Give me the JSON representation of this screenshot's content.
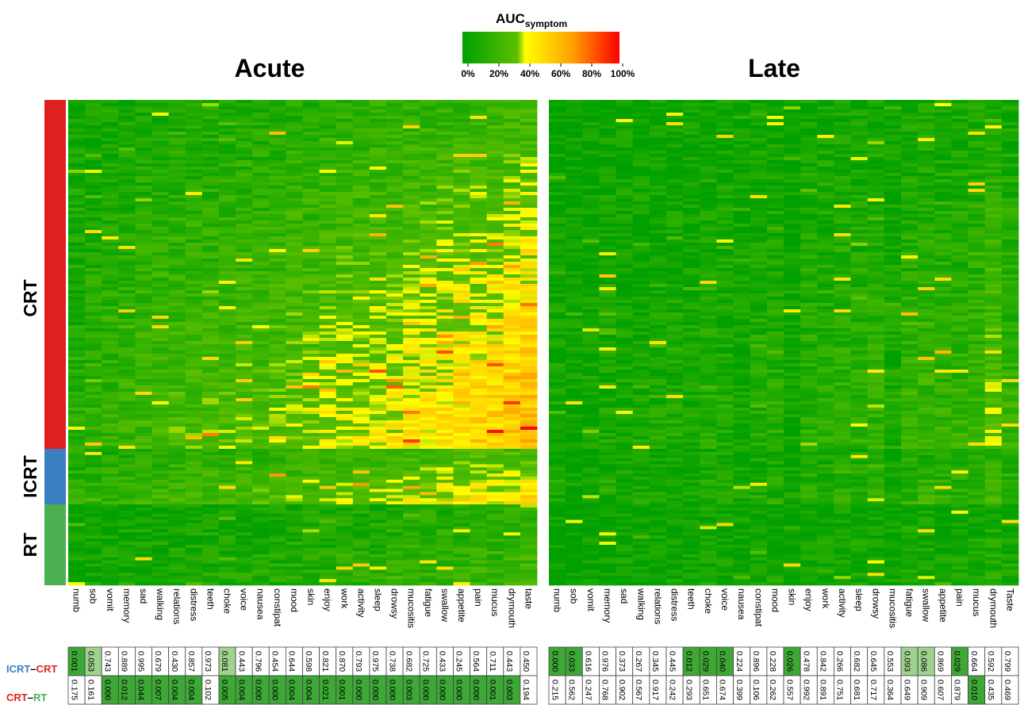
{
  "chart_data": {
    "type": "heatmap",
    "colorbar": {
      "title_main": "AUC",
      "title_sub": "symptom",
      "ticks": [
        "0%",
        "20%",
        "40%",
        "60%",
        "80%",
        "100%"
      ],
      "colors": [
        "#00a000",
        "#5cbf00",
        "#ffff00",
        "#ffa000",
        "#ff0000"
      ]
    },
    "panels": [
      {
        "title": "Acute",
        "symptoms": [
          "numb",
          "sob",
          "vomit",
          "memory",
          "sad",
          "walking",
          "relations",
          "distress",
          "teeth",
          "choke",
          "voice",
          "nausea",
          "constipat",
          "mood",
          "skin",
          "enjoy",
          "work",
          "activity",
          "sleep",
          "drowsy",
          "mucositis",
          "fatigue",
          "swallow",
          "appetite",
          "pain",
          "mucus",
          "drymouth",
          "taste"
        ],
        "mean_auc_by_group": {
          "CRT": [
            0.1,
            0.12,
            0.13,
            0.14,
            0.16,
            0.17,
            0.18,
            0.18,
            0.19,
            0.19,
            0.2,
            0.2,
            0.21,
            0.23,
            0.23,
            0.25,
            0.26,
            0.27,
            0.28,
            0.29,
            0.31,
            0.32,
            0.33,
            0.34,
            0.36,
            0.37,
            0.39,
            0.42
          ],
          "ICRT": [
            0.13,
            0.14,
            0.15,
            0.16,
            0.18,
            0.18,
            0.19,
            0.19,
            0.2,
            0.2,
            0.21,
            0.21,
            0.22,
            0.23,
            0.23,
            0.25,
            0.26,
            0.27,
            0.28,
            0.29,
            0.31,
            0.31,
            0.33,
            0.33,
            0.35,
            0.35,
            0.37,
            0.39
          ],
          "RT": [
            0.05,
            0.06,
            0.06,
            0.07,
            0.07,
            0.08,
            0.08,
            0.08,
            0.09,
            0.09,
            0.09,
            0.1,
            0.1,
            0.11,
            0.11,
            0.12,
            0.12,
            0.13,
            0.13,
            0.14,
            0.15,
            0.15,
            0.16,
            0.16,
            0.17,
            0.18,
            0.19,
            0.21
          ]
        },
        "pvalues": {
          "ICRT - CRT": [
            "0.001",
            "0.053",
            "0.743",
            "0.889",
            "0.995",
            "0.679",
            "0.430",
            "0.857",
            "0.973",
            "0.081",
            "0.443",
            "0.796",
            "0.454",
            "0.644",
            "0.598",
            "0.821",
            "0.870",
            "0.793",
            "0.975",
            "0.738",
            "0.682",
            "0.725",
            "0.433",
            "0.245",
            "0.564",
            "0.711",
            "0.443",
            "0.450"
          ],
          "CRT - RT": [
            "0.175",
            "0.161",
            "0.000",
            "0.012",
            "0.044",
            "0.007",
            "0.004",
            "0.004",
            "0.102",
            "0.005",
            "0.004",
            "0.000",
            "0.000",
            "0.004",
            "0.004",
            "0.021",
            "0.001",
            "0.000",
            "0.000",
            "0.000",
            "0.003",
            "0.000",
            "0.000",
            "0.000",
            "0.000",
            "0.001",
            "0.003",
            "0.194"
          ]
        }
      },
      {
        "title": "Late",
        "symptoms": [
          "numb",
          "sob",
          "vomit",
          "memory",
          "sad",
          "walking",
          "relations",
          "distress",
          "teeth",
          "choke",
          "voice",
          "nausea",
          "constipat",
          "mood",
          "skin",
          "enjoy",
          "work",
          "activity",
          "sleep",
          "drowsy",
          "mucositis",
          "fatigue",
          "swallow",
          "appetite",
          "pain",
          "mucus",
          "drymouth",
          "Taste"
        ],
        "mean_auc_by_group": {
          "CRT": [
            0.05,
            0.03,
            0.04,
            0.07,
            0.06,
            0.07,
            0.07,
            0.08,
            0.06,
            0.09,
            0.08,
            0.05,
            0.09,
            0.1,
            0.04,
            0.11,
            0.11,
            0.12,
            0.12,
            0.13,
            0.07,
            0.14,
            0.14,
            0.13,
            0.13,
            0.15,
            0.22,
            0.14
          ],
          "ICRT": [
            0.05,
            0.03,
            0.04,
            0.07,
            0.06,
            0.07,
            0.07,
            0.08,
            0.06,
            0.09,
            0.08,
            0.05,
            0.09,
            0.1,
            0.04,
            0.11,
            0.11,
            0.12,
            0.12,
            0.13,
            0.07,
            0.14,
            0.15,
            0.13,
            0.13,
            0.15,
            0.2,
            0.14
          ],
          "RT": [
            0.03,
            0.02,
            0.02,
            0.04,
            0.04,
            0.04,
            0.04,
            0.05,
            0.04,
            0.05,
            0.05,
            0.03,
            0.05,
            0.06,
            0.02,
            0.06,
            0.06,
            0.07,
            0.07,
            0.07,
            0.04,
            0.08,
            0.08,
            0.07,
            0.07,
            0.08,
            0.12,
            0.08
          ]
        },
        "pvalues": {
          "ICRT - CRT": [
            "0.000",
            "0.033",
            "0.616",
            "0.976",
            "0.373",
            "0.267",
            "0.345",
            "0.445",
            "0.012",
            "0.029",
            "0.040",
            "0.224",
            "0.896",
            "0.228",
            "0.026",
            "0.478",
            "0.842",
            "0.266",
            "0.682",
            "0.645",
            "0.553",
            "0.093",
            "0.086",
            "0.869",
            "0.029",
            "0.664",
            "0.592",
            "0.799"
          ],
          "CRT - RT": [
            "0.215",
            "0.562",
            "0.247",
            "0.768",
            "0.902",
            "0.567",
            "0.917",
            "0.242",
            "0.293",
            "0.651",
            "0.674",
            "0.399",
            "0.106",
            "0.262",
            "0.557",
            "0.992",
            "0.891",
            "0.751",
            "0.681",
            "0.717",
            "0.364",
            "0.649",
            "0.909",
            "0.607",
            "0.879",
            "0.010",
            "0.435",
            "0.469"
          ]
        }
      }
    ],
    "groups": [
      {
        "name": "CRT",
        "color": "#e02020"
      },
      {
        "name": "ICRT",
        "color": "#3a7fc0"
      },
      {
        "name": "RT",
        "color": "#4caf50"
      }
    ],
    "comparisons": [
      {
        "left": "ICRT",
        "right": "CRT",
        "left_color": "#3a7fc0",
        "right_color": "#e02020"
      },
      {
        "left": "CRT",
        "right": "RT",
        "left_color": "#e02020",
        "right_color": "#4caf50"
      }
    ],
    "dash": "–",
    "pvalue_shading_threshold": 0.05
  }
}
